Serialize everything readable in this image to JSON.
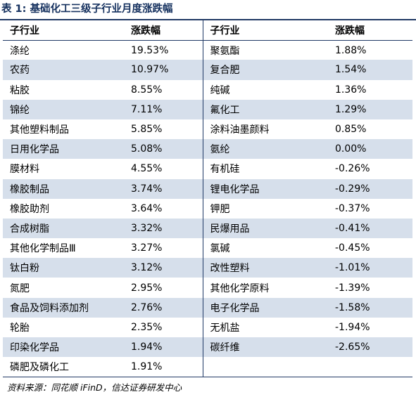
{
  "title": "表 1:  基础化工三级子行业月度涨跌幅",
  "headers": {
    "left_name": "子行业",
    "left_value": "涨跌幅",
    "right_name": "子行业",
    "right_value": "涨跌幅"
  },
  "rows": [
    {
      "left_name": "涤纶",
      "left_value": "19.53%",
      "right_name": "聚氨酯",
      "right_value": "1.88%"
    },
    {
      "left_name": "农药",
      "left_value": "10.97%",
      "right_name": "复合肥",
      "right_value": "1.54%"
    },
    {
      "left_name": "粘胶",
      "left_value": "8.55%",
      "right_name": "纯碱",
      "right_value": "1.36%"
    },
    {
      "left_name": "锦纶",
      "left_value": "7.11%",
      "right_name": "氟化工",
      "right_value": "1.29%"
    },
    {
      "left_name": "其他塑料制品",
      "left_value": "5.85%",
      "right_name": "涂料油墨颜料",
      "right_value": "0.85%"
    },
    {
      "left_name": "日用化学品",
      "left_value": "5.08%",
      "right_name": "氨纶",
      "right_value": "0.00%"
    },
    {
      "left_name": "膜材料",
      "left_value": "4.55%",
      "right_name": "有机硅",
      "right_value": "-0.26%"
    },
    {
      "left_name": "橡胶制品",
      "left_value": "3.74%",
      "right_name": "锂电化学品",
      "right_value": "-0.29%"
    },
    {
      "left_name": "橡胶助剂",
      "left_value": "3.64%",
      "right_name": "钾肥",
      "right_value": "-0.37%"
    },
    {
      "left_name": "合成树脂",
      "left_value": "3.32%",
      "right_name": "民爆用品",
      "right_value": "-0.41%"
    },
    {
      "left_name": "其他化学制品Ⅲ",
      "left_value": "3.27%",
      "right_name": "氯碱",
      "right_value": "-0.45%"
    },
    {
      "left_name": "钛白粉",
      "left_value": "3.12%",
      "right_name": "改性塑料",
      "right_value": "-1.01%"
    },
    {
      "left_name": "氮肥",
      "left_value": "2.95%",
      "right_name": "其他化学原料",
      "right_value": "-1.39%"
    },
    {
      "left_name": "食品及饲料添加剂",
      "left_value": "2.76%",
      "right_name": "电子化学品",
      "right_value": "-1.58%"
    },
    {
      "left_name": "轮胎",
      "left_value": "2.35%",
      "right_name": "无机盐",
      "right_value": "-1.94%"
    },
    {
      "left_name": "印染化学品",
      "left_value": "1.94%",
      "right_name": "碳纤维",
      "right_value": "-2.65%"
    },
    {
      "left_name": "磷肥及磷化工",
      "left_value": "1.91%",
      "right_name": "",
      "right_value": ""
    }
  ],
  "source": "资料来源：同花顺 iFinD，信达证券研发中心",
  "colors": {
    "title": "#14305e",
    "rule": "#1f3864",
    "row_shade": "#d6dfeb"
  }
}
